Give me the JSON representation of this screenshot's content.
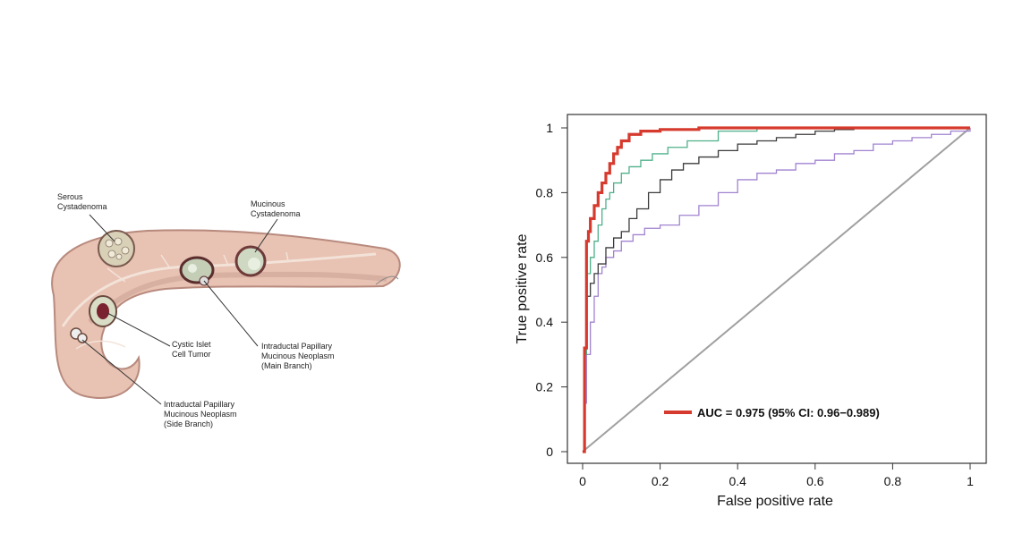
{
  "illustration": {
    "labels": {
      "serous": [
        "Serous",
        "Cystadenoma"
      ],
      "mucinous": [
        "Mucinous",
        "Cystadenoma"
      ],
      "islet": [
        "Cystic Islet",
        "Cell Tumor"
      ],
      "ipmn_main": [
        "Intraductal Papillary",
        "Mucinous Neoplasm",
        "(Main Branch)"
      ],
      "ipmn_side": [
        "Intraductal Papillary",
        "Mucinous Neoplasm",
        "(Side Branch)"
      ]
    },
    "colors": {
      "pancreas": "#e8c2b2",
      "pancreas_edge": "#b88a7e",
      "duct": "#f3e2d8",
      "cyst": "#cfd8c2"
    }
  },
  "chart_data": {
    "type": "line",
    "xlabel": "False positive rate",
    "ylabel": "True positive rate",
    "xlim": [
      0,
      1
    ],
    "ylim": [
      0,
      1
    ],
    "xticks": [
      "0",
      "0.2",
      "0.4",
      "0.6",
      "0.8",
      "1"
    ],
    "yticks": [
      "0",
      "0.2",
      "0.4",
      "0.6",
      "0.8",
      "1"
    ],
    "grid": false,
    "legend": {
      "position": "bottom-center",
      "entries": [
        {
          "label": "AUC = 0.975 (95% CI: 0.96−0.989)",
          "color": "#d63a2e"
        }
      ]
    },
    "series": [
      {
        "name": "reference",
        "color": "#a0a0a0",
        "x": [
          0,
          1
        ],
        "y": [
          0,
          1
        ]
      },
      {
        "name": "purple",
        "color": "#a183d0",
        "x": [
          0,
          0.005,
          0.005,
          0.01,
          0.01,
          0.02,
          0.02,
          0.03,
          0.04,
          0.05,
          0.06,
          0.08,
          0.1,
          0.13,
          0.16,
          0.2,
          0.25,
          0.3,
          0.35,
          0.4,
          0.45,
          0.5,
          0.55,
          0.6,
          0.65,
          0.7,
          0.75,
          0.8,
          0.85,
          0.9,
          0.95,
          1
        ],
        "y": [
          0,
          0,
          0.15,
          0.15,
          0.3,
          0.3,
          0.4,
          0.48,
          0.55,
          0.57,
          0.6,
          0.62,
          0.65,
          0.67,
          0.69,
          0.7,
          0.73,
          0.76,
          0.8,
          0.84,
          0.86,
          0.87,
          0.89,
          0.9,
          0.92,
          0.93,
          0.95,
          0.96,
          0.97,
          0.98,
          0.99,
          1
        ]
      },
      {
        "name": "dark-gray",
        "color": "#3b3b3b",
        "x": [
          0,
          0.005,
          0.005,
          0.01,
          0.01,
          0.02,
          0.02,
          0.03,
          0.04,
          0.06,
          0.08,
          0.1,
          0.12,
          0.14,
          0.17,
          0.2,
          0.23,
          0.26,
          0.3,
          0.35,
          0.4,
          0.45,
          0.5,
          0.55,
          0.6,
          0.65,
          0.7
        ],
        "y": [
          0,
          0,
          0.3,
          0.3,
          0.48,
          0.48,
          0.52,
          0.55,
          0.58,
          0.63,
          0.66,
          0.68,
          0.72,
          0.75,
          0.8,
          0.84,
          0.87,
          0.89,
          0.91,
          0.93,
          0.95,
          0.96,
          0.97,
          0.98,
          0.99,
          0.995,
          1
        ]
      },
      {
        "name": "green",
        "color": "#4fb08a",
        "x": [
          0,
          0.005,
          0.005,
          0.01,
          0.01,
          0.02,
          0.03,
          0.04,
          0.05,
          0.06,
          0.07,
          0.08,
          0.1,
          0.12,
          0.15,
          0.18,
          0.22,
          0.27,
          0.35,
          0.45
        ],
        "y": [
          0,
          0,
          0.3,
          0.3,
          0.55,
          0.6,
          0.65,
          0.7,
          0.75,
          0.78,
          0.8,
          0.83,
          0.86,
          0.88,
          0.9,
          0.92,
          0.94,
          0.96,
          0.99,
          1
        ]
      },
      {
        "name": "red",
        "color": "#d63a2e",
        "x": [
          0,
          0.005,
          0.005,
          0.01,
          0.01,
          0.015,
          0.02,
          0.03,
          0.04,
          0.05,
          0.06,
          0.07,
          0.08,
          0.09,
          0.1,
          0.12,
          0.15,
          0.2,
          0.3,
          0.5,
          0.7,
          1
        ],
        "y": [
          0,
          0,
          0.32,
          0.32,
          0.65,
          0.68,
          0.72,
          0.76,
          0.8,
          0.83,
          0.86,
          0.89,
          0.92,
          0.94,
          0.96,
          0.98,
          0.99,
          0.995,
          1,
          1,
          1,
          1
        ]
      }
    ]
  }
}
